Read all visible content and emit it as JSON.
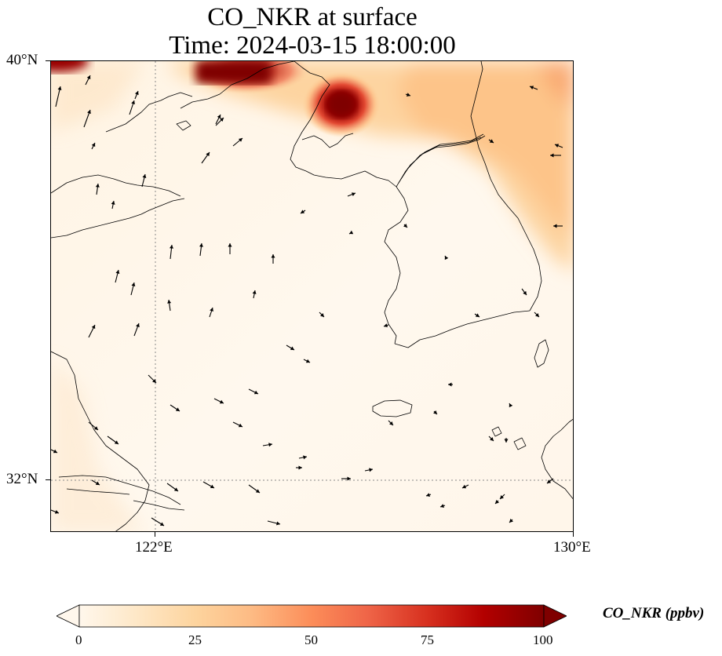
{
  "title": {
    "line1": "CO_NKR at surface",
    "line2": "Time: 2024-03-15 18:00:00"
  },
  "map": {
    "variable": "CO_NKR",
    "level": "surface",
    "time": "2024-03-15 18:00:00",
    "lon_range": [
      121.0,
      130.0
    ],
    "lat_range": [
      31.0,
      40.0
    ],
    "gridlines": {
      "lon": [
        122
      ],
      "lat": [
        32
      ],
      "style": "dotted"
    },
    "x_ticks": [
      {
        "value": 122,
        "label": "122°E"
      },
      {
        "value": 130,
        "label": "130°E"
      }
    ],
    "y_ticks": [
      {
        "value": 40,
        "label": "40°N"
      },
      {
        "value": 32,
        "label": "32°N"
      }
    ],
    "features": [
      "coastlines",
      "borders",
      "wind-vectors"
    ],
    "hotspots": [
      {
        "name": "north-central plume",
        "lon": 124.2,
        "lat": 39.9,
        "value": 100
      },
      {
        "name": "Pyongyang area",
        "lon": 125.7,
        "lat": 39.0,
        "value": 95
      },
      {
        "name": "northwest corner",
        "lon": 121.3,
        "lat": 39.9,
        "value": 90
      }
    ]
  },
  "colorbar": {
    "label": "CO_NKR (ppbv)",
    "min": 0,
    "max": 100,
    "ticks": [
      "0",
      "25",
      "50",
      "75",
      "100"
    ],
    "extend": "both",
    "colormap": "OrRd",
    "colors": [
      "#fff7ec",
      "#fee8c8",
      "#fdd49e",
      "#fdbb84",
      "#fc8d59",
      "#ef6548",
      "#d7301f",
      "#b30000",
      "#7f0000"
    ]
  }
}
